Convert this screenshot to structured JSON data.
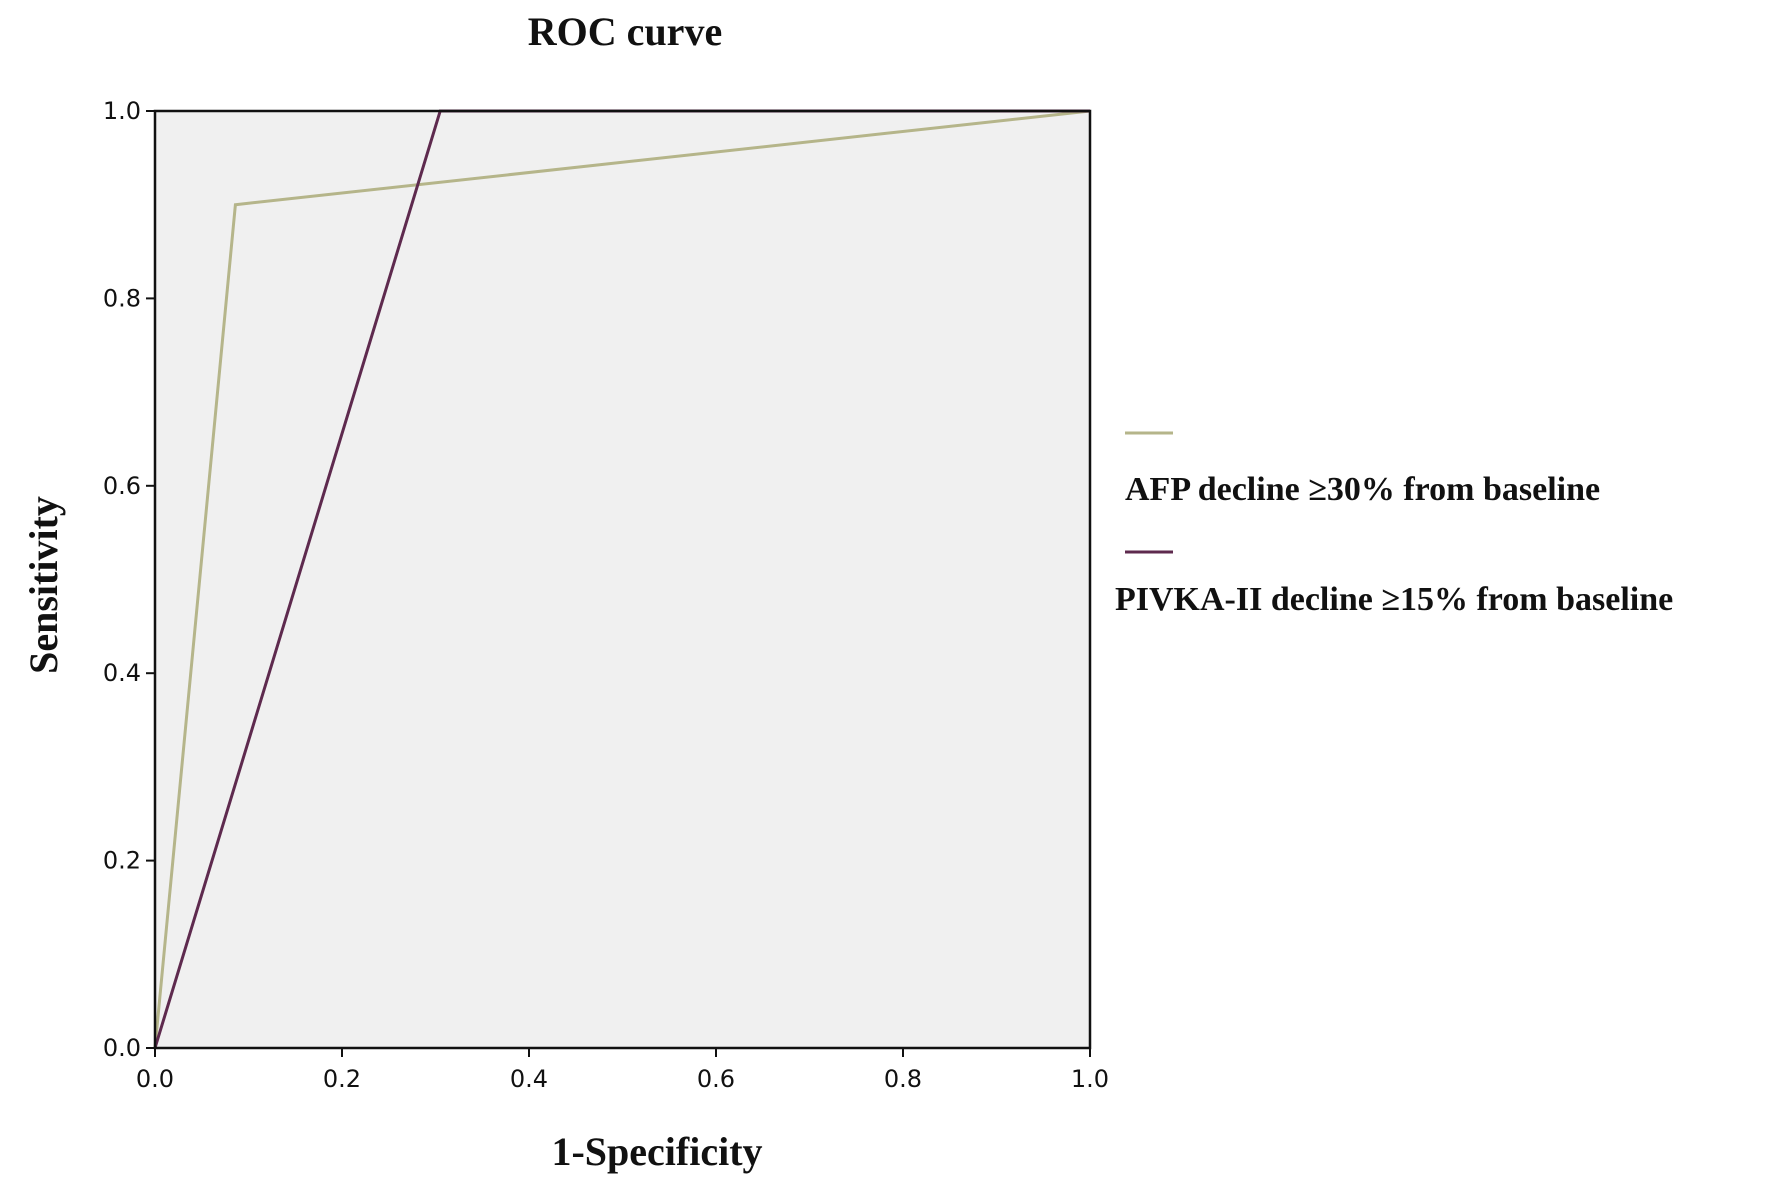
{
  "chart_data": {
    "type": "line",
    "title": "ROC curve",
    "xlabel": "1-Specificity",
    "ylabel": "Sensitivity",
    "xlim": [
      0,
      1
    ],
    "ylim": [
      0,
      1
    ],
    "xticks": [
      "0.0",
      "0.2",
      "0.4",
      "0.6",
      "0.8",
      "1.0"
    ],
    "yticks": [
      "0.0",
      "0.2",
      "0.4",
      "0.6",
      "0.8",
      "1.0"
    ],
    "grid": false,
    "legend_position": "right",
    "plot_background": "#f0f0f0",
    "series": [
      {
        "name": "AFP decline ≥30% from baseline",
        "color": "#b5b58a",
        "points": [
          [
            0.0,
            0.0
          ],
          [
            0.086,
            0.9
          ],
          [
            1.0,
            1.0
          ]
        ]
      },
      {
        "name": "PIVKA-II decline ≥15% from baseline",
        "color": "#5e2a4e",
        "points": [
          [
            0.0,
            0.0
          ],
          [
            0.305,
            1.0
          ],
          [
            1.0,
            1.0
          ]
        ]
      }
    ]
  }
}
